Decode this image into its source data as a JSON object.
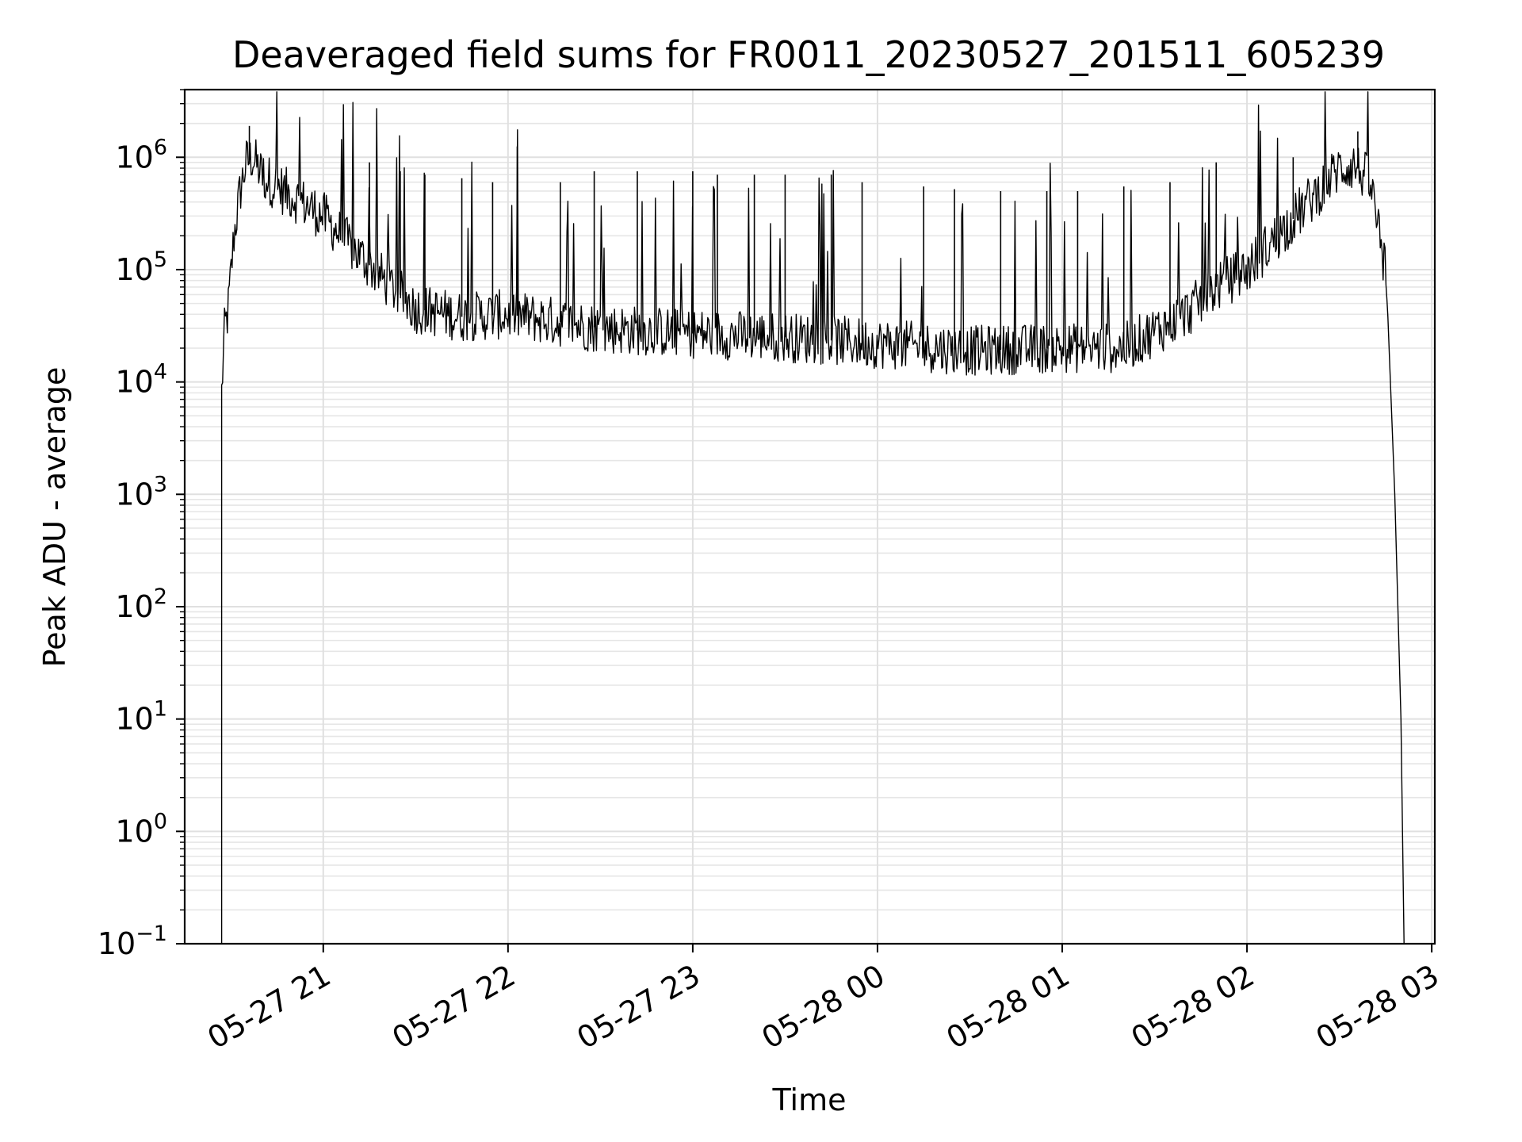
{
  "chart_data": {
    "type": "line",
    "title": "Deaveraged field sums for FR0011_20230527_201511_605239",
    "xlabel": "Time",
    "ylabel": "Peak ADU - average",
    "yscale": "log",
    "ylim": [
      0.1,
      4000000
    ],
    "xlim": [
      "2023-05-27 20:15",
      "2023-05-28 03:01"
    ],
    "grid": true,
    "x_ticks": [
      {
        "t": "2023-05-27 21:00",
        "label": "05-27 21"
      },
      {
        "t": "2023-05-27 22:00",
        "label": "05-27 22"
      },
      {
        "t": "2023-05-27 23:00",
        "label": "05-27 23"
      },
      {
        "t": "2023-05-28 00:00",
        "label": "05-28 00"
      },
      {
        "t": "2023-05-28 01:00",
        "label": "05-28 01"
      },
      {
        "t": "2023-05-28 02:00",
        "label": "05-28 02"
      },
      {
        "t": "2023-05-28 03:00",
        "label": "05-28 03"
      }
    ],
    "y_ticks": [
      {
        "value": 0.1,
        "base": "10",
        "exp": "−1"
      },
      {
        "value": 1,
        "base": "10",
        "exp": "0"
      },
      {
        "value": 10,
        "base": "10",
        "exp": "1"
      },
      {
        "value": 100,
        "base": "10",
        "exp": "2"
      },
      {
        "value": 1000,
        "base": "10",
        "exp": "3"
      },
      {
        "value": 10000,
        "base": "10",
        "exp": "4"
      },
      {
        "value": 100000,
        "base": "10",
        "exp": "5"
      },
      {
        "value": 1000000,
        "base": "10",
        "exp": "6"
      }
    ],
    "series": [
      {
        "color": "#000000",
        "baseline": [
          {
            "t": "2023-05-27 20:27",
            "v": 0.1
          },
          {
            "t": "2023-05-27 20:27",
            "v": 8000
          },
          {
            "t": "2023-05-27 20:28",
            "v": 30000
          },
          {
            "t": "2023-05-27 20:29",
            "v": 40000
          },
          {
            "t": "2023-05-27 20:31",
            "v": 200000
          },
          {
            "t": "2023-05-27 20:33",
            "v": 500000
          },
          {
            "t": "2023-05-27 20:35",
            "v": 900000
          },
          {
            "t": "2023-05-27 20:37",
            "v": 1000000
          },
          {
            "t": "2023-05-27 20:40",
            "v": 700000
          },
          {
            "t": "2023-05-27 20:45",
            "v": 550000
          },
          {
            "t": "2023-05-27 20:50",
            "v": 450000
          },
          {
            "t": "2023-05-27 21:00",
            "v": 300000
          },
          {
            "t": "2023-05-27 21:10",
            "v": 150000
          },
          {
            "t": "2023-05-27 21:20",
            "v": 80000
          },
          {
            "t": "2023-05-27 21:30",
            "v": 45000
          },
          {
            "t": "2023-05-27 21:45",
            "v": 38000
          },
          {
            "t": "2023-05-27 22:00",
            "v": 40000
          },
          {
            "t": "2023-05-27 22:30",
            "v": 30000
          },
          {
            "t": "2023-05-27 23:00",
            "v": 27000
          },
          {
            "t": "2023-05-27 23:30",
            "v": 25000
          },
          {
            "t": "2023-05-28 00:00",
            "v": 22000
          },
          {
            "t": "2023-05-28 00:30",
            "v": 19000
          },
          {
            "t": "2023-05-28 01:00",
            "v": 20000
          },
          {
            "t": "2023-05-28 01:20",
            "v": 20000
          },
          {
            "t": "2023-05-28 01:40",
            "v": 40000
          },
          {
            "t": "2023-05-28 01:50",
            "v": 70000
          },
          {
            "t": "2023-05-28 02:00",
            "v": 100000
          },
          {
            "t": "2023-05-28 02:10",
            "v": 200000
          },
          {
            "t": "2023-05-28 02:20",
            "v": 400000
          },
          {
            "t": "2023-05-28 02:30",
            "v": 800000
          },
          {
            "t": "2023-05-28 02:35",
            "v": 850000
          },
          {
            "t": "2023-05-28 02:40",
            "v": 600000
          },
          {
            "t": "2023-05-28 02:45",
            "v": 100000
          },
          {
            "t": "2023-05-28 02:48",
            "v": 1000
          },
          {
            "t": "2023-05-28 02:50",
            "v": 10
          },
          {
            "t": "2023-05-28 02:51",
            "v": 0.1
          }
        ],
        "spikes": [
          {
            "t": "2023-05-27 20:36",
            "v": 1900000
          },
          {
            "t": "2023-05-27 21:15",
            "v": 900000
          },
          {
            "t": "2023-05-27 21:25",
            "v": 750000
          },
          {
            "t": "2023-05-27 21:33",
            "v": 700000
          },
          {
            "t": "2023-05-27 21:45",
            "v": 650000
          },
          {
            "t": "2023-05-27 21:55",
            "v": 600000
          },
          {
            "t": "2023-05-27 22:03",
            "v": 1250000
          },
          {
            "t": "2023-05-27 22:17",
            "v": 600000
          },
          {
            "t": "2023-05-27 22:28",
            "v": 750000
          },
          {
            "t": "2023-05-27 22:42",
            "v": 750000
          },
          {
            "t": "2023-05-27 23:00",
            "v": 750000
          },
          {
            "t": "2023-05-27 23:08",
            "v": 700000
          },
          {
            "t": "2023-05-27 23:20",
            "v": 700000
          },
          {
            "t": "2023-05-27 23:30",
            "v": 700000
          },
          {
            "t": "2023-05-27 23:45",
            "v": 700000
          },
          {
            "t": "2023-05-27 23:55",
            "v": 600000
          },
          {
            "t": "2023-05-28 00:15",
            "v": 550000
          },
          {
            "t": "2023-05-28 00:25",
            "v": 520000
          },
          {
            "t": "2023-05-28 00:40",
            "v": 500000
          },
          {
            "t": "2023-05-28 00:55",
            "v": 500000
          },
          {
            "t": "2023-05-28 01:05",
            "v": 500000
          },
          {
            "t": "2023-05-28 01:20",
            "v": 550000
          },
          {
            "t": "2023-05-28 01:35",
            "v": 600000
          },
          {
            "t": "2023-05-28 01:50",
            "v": 900000
          },
          {
            "t": "2023-05-28 02:15",
            "v": 1000000
          },
          {
            "t": "2023-05-28 02:36",
            "v": 1700000
          }
        ]
      }
    ]
  }
}
